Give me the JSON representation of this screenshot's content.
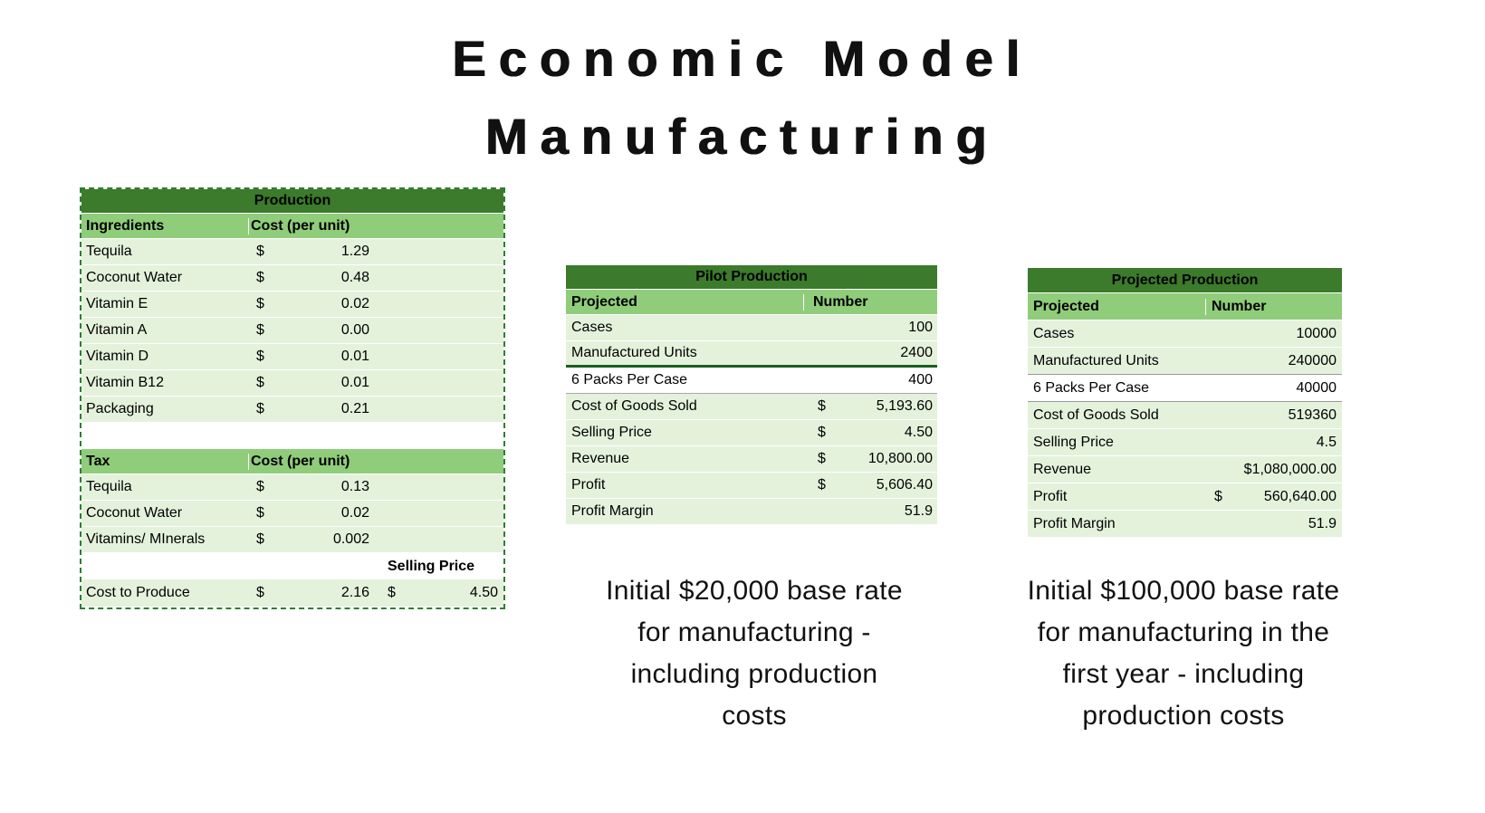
{
  "title": {
    "line1": "Economic Model",
    "line2": "Manufacturing"
  },
  "colors": {
    "header_dark_green": "#3c7a2c",
    "header_light_green": "#90cd7b",
    "row_light_green": "#e4f2dc",
    "accent_border_green": "#1b5e20",
    "selection_dash_green": "#2f7d32"
  },
  "production": {
    "title": "Production",
    "columns": {
      "ingredients": "Ingredients",
      "cost": "Cost (per unit)"
    },
    "rows": [
      {
        "label": "Tequila",
        "cur": "$",
        "value": "1.29"
      },
      {
        "label": "Coconut Water",
        "cur": "$",
        "value": "0.48"
      },
      {
        "label": "Vitamin E",
        "cur": "$",
        "value": "0.02"
      },
      {
        "label": "Vitamin A",
        "cur": "$",
        "value": "0.00"
      },
      {
        "label": "Vitamin D",
        "cur": "$",
        "value": "0.01"
      },
      {
        "label": "Vitamin B12",
        "cur": "$",
        "value": "0.01"
      },
      {
        "label": "Packaging",
        "cur": "$",
        "value": "0.21"
      }
    ],
    "tax": {
      "title": "Tax",
      "cost_header": "Cost (per unit)",
      "rows": [
        {
          "label": "Tequila",
          "cur": "$",
          "value": "0.13"
        },
        {
          "label": "Coconut Water",
          "cur": "$",
          "value": "0.02"
        },
        {
          "label": "Vitamins/ MInerals",
          "cur": "$",
          "value": "0.002"
        }
      ]
    },
    "selling_price_header": "Selling Price",
    "summary": {
      "label": "Cost to Produce",
      "cur1": "$",
      "value1": "2.16",
      "cur2": "$",
      "value2": "4.50"
    }
  },
  "pilot": {
    "title": "Pilot Production",
    "columns": {
      "label": "Projected",
      "value": "Number"
    },
    "rows": [
      {
        "label": "Cases",
        "cur": "",
        "value": "100"
      },
      {
        "label": "Manufactured Units",
        "cur": "",
        "value": "2400"
      },
      {
        "label": "6 Packs Per Case",
        "cur": "",
        "value": "400"
      },
      {
        "label": "Cost of Goods Sold",
        "cur": "$",
        "value": "5,193.60"
      },
      {
        "label": "Selling Price",
        "cur": "$",
        "value": "4.50"
      },
      {
        "label": "Revenue",
        "cur": "$",
        "value": "10,800.00"
      },
      {
        "label": "Profit",
        "cur": "$",
        "value": "5,606.40"
      },
      {
        "label": "Profit Margin",
        "cur": "",
        "value": "51.9"
      }
    ],
    "caption_lines": [
      "Initial $20,000 base rate",
      "for manufacturing -",
      "including production",
      "costs"
    ]
  },
  "projected": {
    "title": "Projected Production",
    "columns": {
      "label": "Projected",
      "value": "Number"
    },
    "rows": [
      {
        "label": "Cases",
        "cur": "",
        "value": "10000"
      },
      {
        "label": "Manufactured Units",
        "cur": "",
        "value": "240000"
      },
      {
        "label": "6 Packs Per Case",
        "cur": "",
        "value": "40000"
      },
      {
        "label": "Cost of Goods Sold",
        "cur": "",
        "value": "519360"
      },
      {
        "label": "Selling Price",
        "cur": "",
        "value": "4.5"
      },
      {
        "label": "Revenue",
        "cur": "",
        "value": "$1,080,000.00"
      },
      {
        "label": "Profit",
        "cur": "$",
        "value": "560,640.00"
      },
      {
        "label": "Profit Margin",
        "cur": "",
        "value": "51.9"
      }
    ],
    "caption_lines": [
      "Initial $100,000 base rate",
      "for manufacturing in the",
      "first year - including",
      "production costs"
    ]
  }
}
